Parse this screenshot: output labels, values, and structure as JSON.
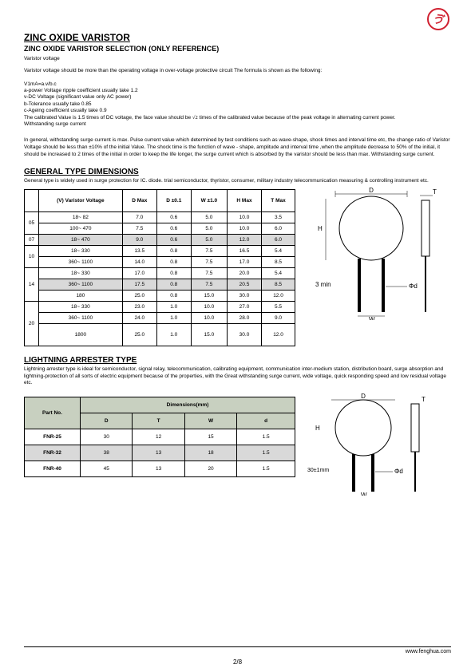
{
  "header": {
    "title": "ZINC OXIDE VARISTOR",
    "subtitle": "ZINC OXIDE VARISTOR SELECTION (ONLY REFERENCE)",
    "section_label": "Varistor voltage"
  },
  "intro": {
    "p1": "Varistor voltage should be more than the operating voltage in over-voltage protective circuit The formula is shown as the following:",
    "formula": "V1mA=a.v/b.c",
    "lines": [
      "a-power Voltage ripple coefficient usually take 1.2",
      "v-DC Voltage (significant value only AC power)",
      "b-Tolerance usually take 0.85",
      "c-Ageing coefficient usually take 0.9"
    ],
    "calibrated_a": "The calibrated Value is 1.5 times of DC voltage, the face value should be ",
    "calibrated_b": " times of the calibrated value because of the peak voltage in alternating current power.",
    "withstanding_label": "Withstanding surge current",
    "p2": "In general, withstanding surge current is max. Pulse current value which determined by test conditions such as wave-shape, shock times and interval time etc, the change ratio of Varistor Voltage should be less than ±10% of the initial Value. The shock time is the function of wave - shape, amplitude and interval time ,when the amplitude decrease to 50% of the initial, it should be increased to 2 times of the initial in order to keep the life longer, the surge current which is absorbed by the varistor should be less than max. Withstanding surge current."
  },
  "gen": {
    "heading": "GENERAL TYPE DIMENSIONS",
    "desc": "General type is widely used in surge protection for IC. diode. trial semiconductor, thyristor, consumer, military industry telecommunication measuring & controlling instrument etc.",
    "headers": [
      "(V) Varistor Voltage",
      "D Max",
      "D ±0.1",
      "W ±1.0",
      "H Max",
      "T Max"
    ],
    "rows": [
      {
        "group": "05",
        "v": "18~ 82",
        "d": "7.0",
        "d2": "0.6",
        "w": "5.0",
        "h": "10.0",
        "t": "3.5",
        "gray": false
      },
      {
        "group": "",
        "v": "100~ 470",
        "d": "7.5",
        "d2": "0.6",
        "w": "5.0",
        "h": "10.0",
        "t": "6.0",
        "gray": false
      },
      {
        "group": "07",
        "v": "18~ 470",
        "d": "9.0",
        "d2": "0.6",
        "w": "5.0",
        "h": "12.0",
        "t": "6.0",
        "gray": true
      },
      {
        "group": "10",
        "v": "18~ 330",
        "d": "13.5",
        "d2": "0.8",
        "w": "7.5",
        "h": "16.5",
        "t": "5.4",
        "gray": false
      },
      {
        "group": "",
        "v": "360~ 1100",
        "d": "14.0",
        "d2": "0.8",
        "w": "7.5",
        "h": "17.0",
        "t": "8.5",
        "gray": false
      },
      {
        "group": "14",
        "v": "18~ 330",
        "d": "17.0",
        "d2": "0.8",
        "w": "7.5",
        "h": "20.0",
        "t": "5.4",
        "gray": false
      },
      {
        "group": "",
        "v": "360~ 1100",
        "d": "17.5",
        "d2": "0.8",
        "w": "7.5",
        "h": "20.5",
        "t": "8.5",
        "gray": true
      },
      {
        "group": "",
        "v": "180",
        "d": "25.0",
        "d2": "0.8",
        "w": "15.0",
        "h": "30.0",
        "t": "12.0",
        "gray": false
      },
      {
        "group": "20",
        "v": "18~ 330",
        "d": "23.0",
        "d2": "1.0",
        "w": "10.0",
        "h": "27.0",
        "t": "5.5",
        "gray": false
      },
      {
        "group": "",
        "v": "360~ 1100",
        "d": "24.0",
        "d2": "1.0",
        "w": "10.0",
        "h": "28.0",
        "t": "9.0",
        "gray": false
      },
      {
        "group": "",
        "v": "1800",
        "d": "25.0",
        "d2": "1.0",
        "w": "15.0",
        "h": "30.0",
        "t": "12.0",
        "gray": false
      }
    ],
    "diagram": {
      "D": "D",
      "T": "T",
      "H": "H",
      "W": "W",
      "phid": "Φd",
      "three_min": "3 min"
    }
  },
  "light": {
    "heading": "LIGHTNING ARRESTER TYPE",
    "desc": "Lightning arrester type is ideal for semiconductor, signal relay, telecommunication, calibrating equipment, communication inter-medium station, distribution board, surge absorption and lightning-protection of all sorts of electric equipment because of the properties, with the Great withstanding surge current, wide voltage, quick responding speed and low residual voltage etc.",
    "part_label": "Part No.",
    "dim_label": "Dimensions(mm)",
    "cols": [
      "D",
      "T",
      "W",
      "d"
    ],
    "rows": [
      {
        "pn": "FNR-25",
        "D": "30",
        "T": "12",
        "W": "15",
        "d": "1.5",
        "gray": false
      },
      {
        "pn": "FNR-32",
        "D": "38",
        "T": "13",
        "W": "18",
        "d": "1.5",
        "gray": true
      },
      {
        "pn": "FNR-40",
        "D": "45",
        "T": "13",
        "W": "20",
        "d": "1.5",
        "gray": false
      }
    ],
    "diagram": {
      "D": "D",
      "T": "T",
      "H": "H",
      "W": "W",
      "phid": "Φd",
      "thirty": "30±1mm"
    }
  },
  "footer": {
    "url": "www.fenghua.com",
    "page": "2/8"
  }
}
